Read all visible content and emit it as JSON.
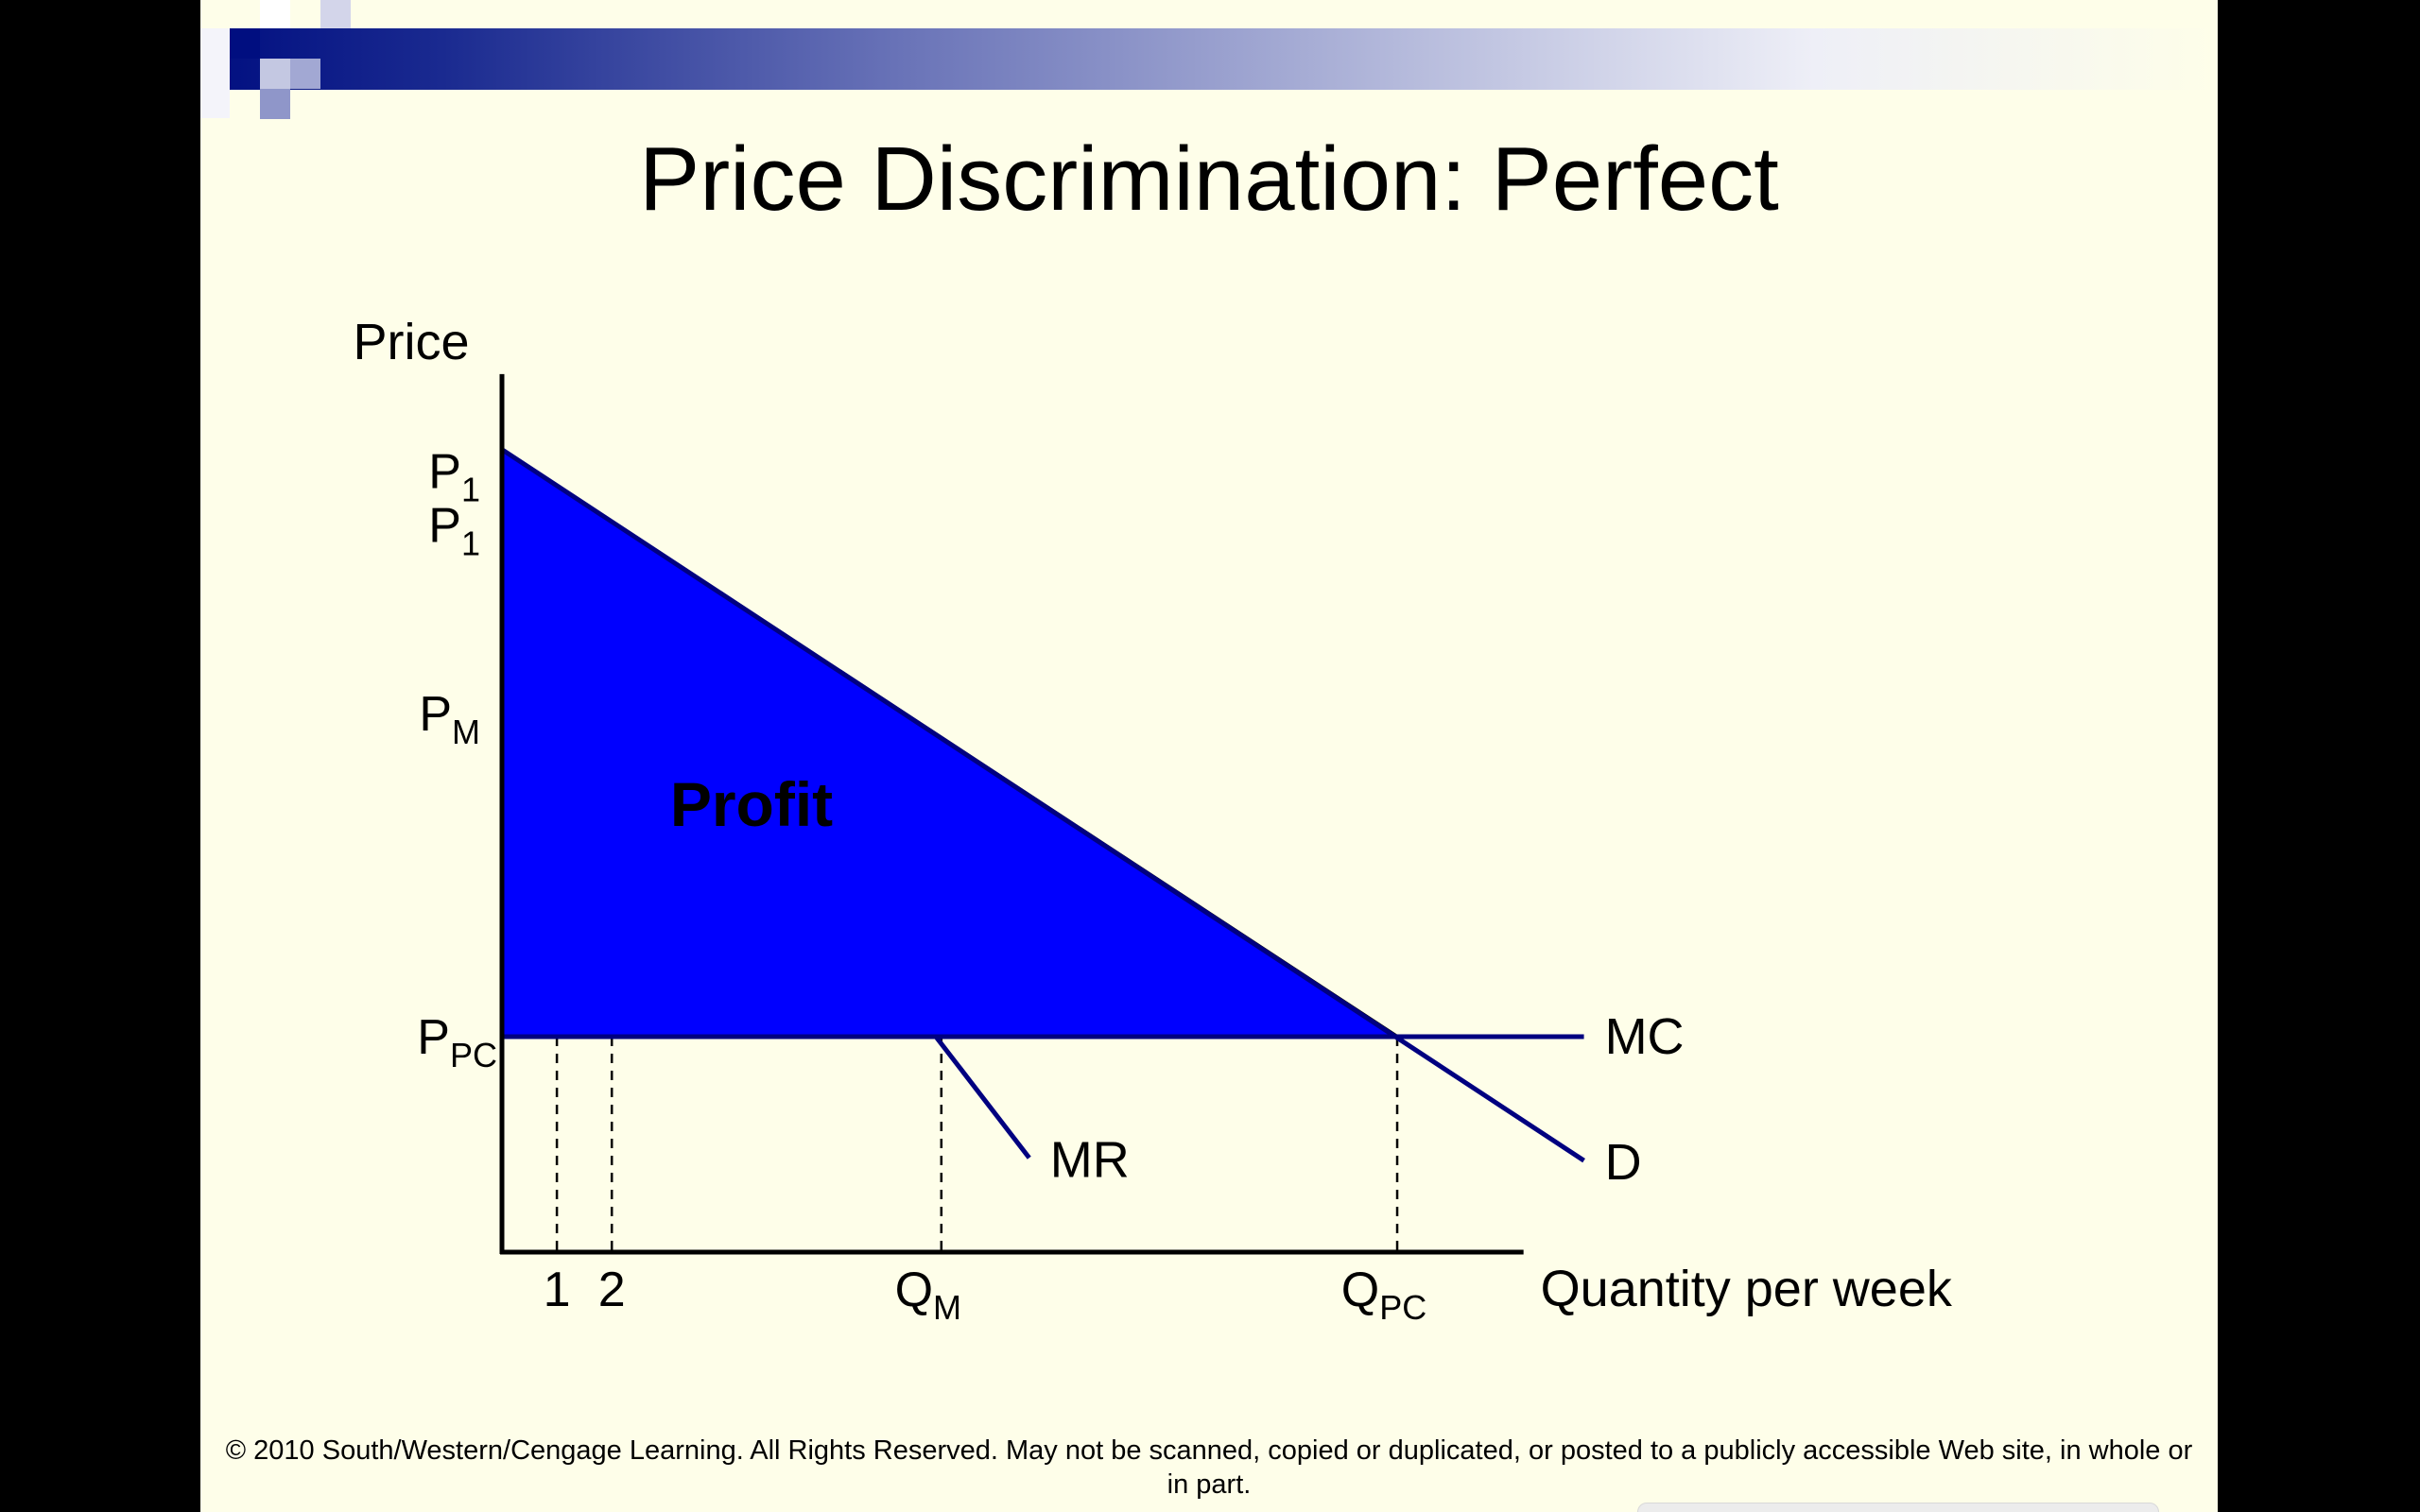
{
  "slide": {
    "title": "Price Discrimination: Perfect",
    "footer": "© 2010 South/Western/Cengage Learning. All Rights Reserved. May not be scanned, copied or duplicated, or posted to a publicly accessible Web site, in whole or in part."
  },
  "colors": {
    "profit_fill": "#0000ff",
    "curve": "#000080",
    "header_dark": "#000e80",
    "background": "#fefee9"
  },
  "chart_data": {
    "type": "area",
    "ylabel": "Price",
    "xlabel": "Quantity per week",
    "x_ticks": [
      {
        "main": "1",
        "sub": "",
        "x": 1
      },
      {
        "main": "2",
        "sub": "",
        "x": 2
      },
      {
        "main": "Q",
        "sub": "M",
        "x": 8
      },
      {
        "main": "Q",
        "sub": "PC",
        "x": 16.3
      }
    ],
    "y_ticks": [
      {
        "main": "P",
        "sub": "1",
        "y": 10.5
      },
      {
        "main": "P",
        "sub": "1",
        "y": 9.5
      },
      {
        "main": "P",
        "sub": "M",
        "y": 6.0
      }
    ],
    "ppc": {
      "main": "P",
      "sub": "PC",
      "y": 0
    },
    "xlim": [
      0,
      18.6
    ],
    "ylim": [
      -4,
      12.3
    ],
    "series": [
      {
        "name": "D",
        "points": [
          [
            0,
            10.9
          ],
          [
            19.7,
            -2.3
          ]
        ]
      },
      {
        "name": "MC",
        "points": [
          [
            0,
            0
          ],
          [
            19.7,
            0
          ]
        ]
      },
      {
        "name": "MR",
        "points": [
          [
            7.9,
            0
          ],
          [
            9.6,
            -2.25
          ]
        ]
      }
    ],
    "profit_region": {
      "label": "Profit",
      "points": [
        [
          0,
          10.9
        ],
        [
          16.3,
          0
        ],
        [
          0,
          0
        ]
      ]
    },
    "dashed_lines_x": [
      1,
      2,
      8,
      16.3
    ]
  }
}
